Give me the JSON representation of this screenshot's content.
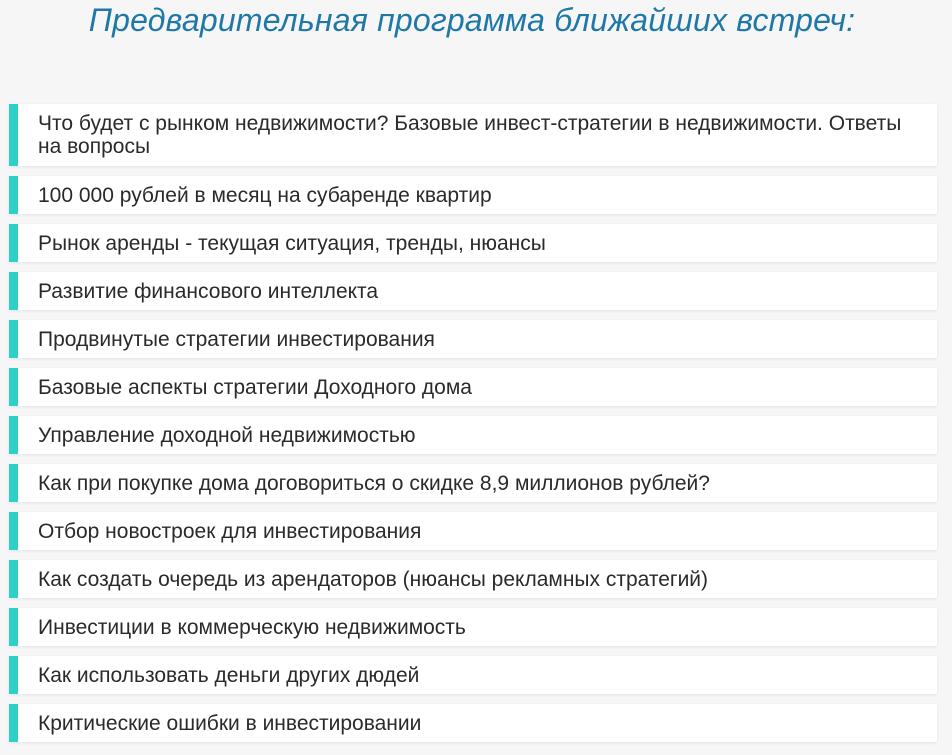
{
  "title": "Предварительная программа ближайших встреч:",
  "accent_color": "#2ecfc9",
  "title_color": "#1f78a8",
  "items": [
    {
      "label": "Что будет с рынком недвижимости? Базовые инвест-стратегии в недвижимости. Ответы на вопросы"
    },
    {
      "label": "100 000 рублей в месяц на субаренде квартир"
    },
    {
      "label": "Рынок аренды - текущая ситуация, тренды, нюансы"
    },
    {
      "label": "Развитие финансового интеллекта"
    },
    {
      "label": "Продвинутые стратегии инвестирования"
    },
    {
      "label": "Базовые аспекты стратегии Доходного дома"
    },
    {
      "label": "Управление доходной недвижимостью"
    },
    {
      "label": "Как при покупке дома договориться о скидке 8,9 миллионов рублей?"
    },
    {
      "label": "Отбор новостроек для инвестирования"
    },
    {
      "label": "Как создать очередь из арендаторов (нюансы рекламных стратегий)"
    },
    {
      "label": "Инвестиции в коммерческую недвижимость"
    },
    {
      "label": "Как использовать деньги других дюдей"
    },
    {
      "label": "Критические ошибки в инвестировании"
    }
  ]
}
